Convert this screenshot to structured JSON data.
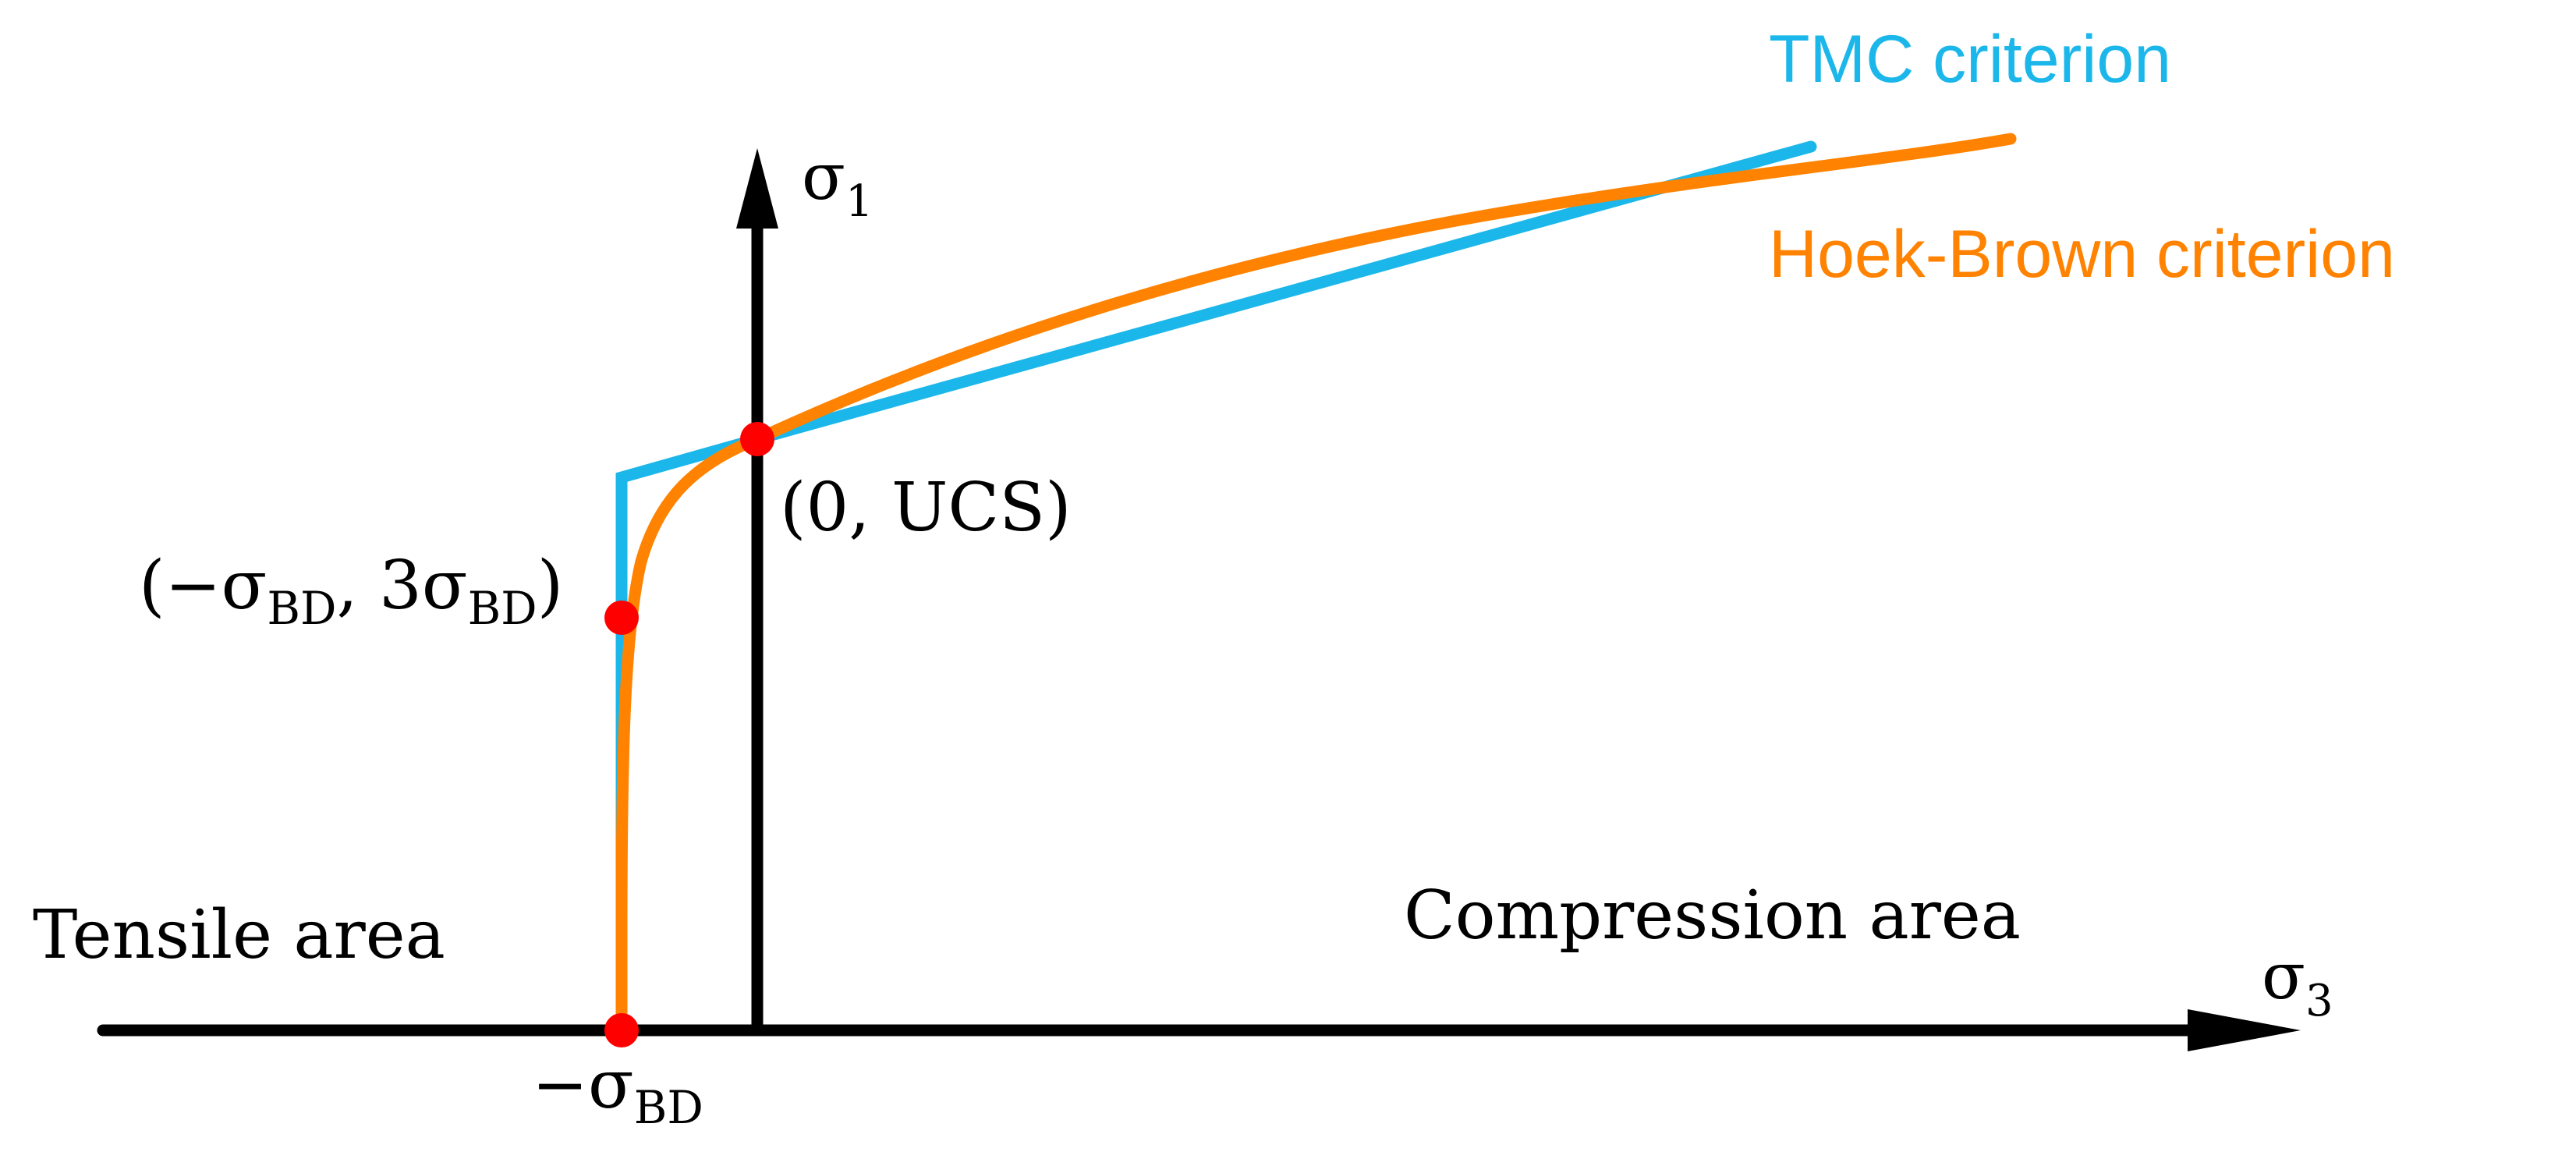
{
  "labels": {
    "sigma1_main": "σ",
    "sigma1_sub": "1",
    "sigma3_main": "σ",
    "sigma3_sub": "3",
    "tensile_area": "Tensile area",
    "compression_area": "Compression area",
    "point_ucs": "(0, UCS)",
    "point_mid_open": "(−σ",
    "point_mid_sub1": "BD",
    "point_mid_comma": ", 3σ",
    "point_mid_sub2": "BD",
    "point_mid_close": ")",
    "point_bd_main": "−σ",
    "point_bd_sub": "BD",
    "legend_tmc": "TMC criterion",
    "legend_hb": "Hoek-Brown criterion"
  },
  "colors": {
    "axis": "#000000",
    "tmc": "#1cb7ea",
    "hoek_brown": "#ff8200",
    "points": "#ff0000"
  },
  "points": [
    {
      "name": "neg-sigma-bd",
      "sigma3": -1,
      "sigma1": 0
    },
    {
      "name": "neg-sigma-bd-3sigma-bd",
      "sigma3": -1,
      "sigma1": 3
    },
    {
      "name": "zero-ucs",
      "sigma3": 0,
      "sigma1": 10.6
    }
  ]
}
